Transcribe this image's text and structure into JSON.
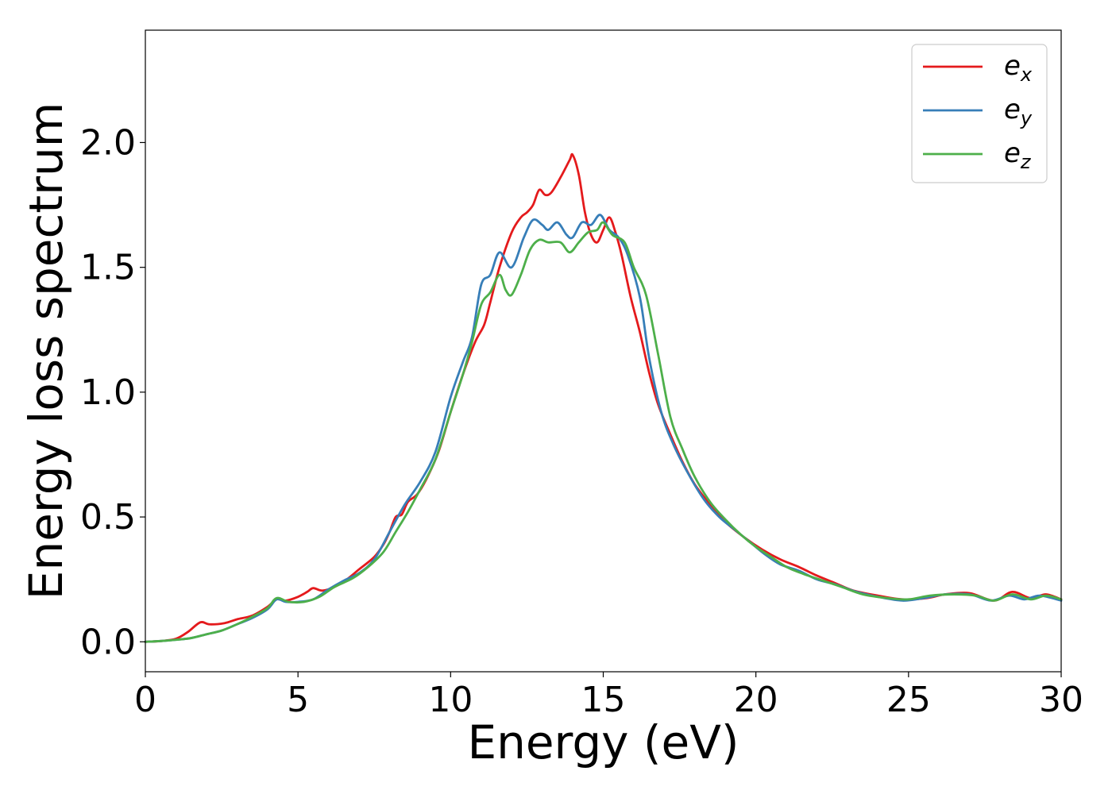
{
  "chart_data": {
    "type": "line",
    "title": "",
    "xlabel": "Energy (eV)",
    "ylabel": "Energy loss spectrum",
    "xlim": [
      0,
      30
    ],
    "ylim": [
      -0.12,
      2.45
    ],
    "xticks": [
      0,
      5,
      10,
      15,
      20,
      25,
      30
    ],
    "xtick_labels": [
      "0",
      "5",
      "10",
      "15",
      "20",
      "25",
      "30"
    ],
    "yticks": [
      0.0,
      0.5,
      1.0,
      1.5,
      2.0
    ],
    "ytick_labels": [
      "0.0",
      "0.5",
      "1.0",
      "1.5",
      "2.0"
    ],
    "grid": false,
    "legend": {
      "position": "top-right"
    },
    "series": [
      {
        "name": "e_x",
        "label_main": "e",
        "label_sub": "x",
        "color": "#e41a1c",
        "points": [
          [
            0,
            0
          ],
          [
            0.5,
            0.003
          ],
          [
            1.0,
            0.012
          ],
          [
            1.4,
            0.04
          ],
          [
            1.8,
            0.078
          ],
          [
            2.1,
            0.07
          ],
          [
            2.6,
            0.075
          ],
          [
            3.0,
            0.09
          ],
          [
            3.5,
            0.105
          ],
          [
            4.0,
            0.14
          ],
          [
            4.3,
            0.17
          ],
          [
            4.6,
            0.165
          ],
          [
            5.0,
            0.18
          ],
          [
            5.3,
            0.2
          ],
          [
            5.5,
            0.215
          ],
          [
            5.8,
            0.205
          ],
          [
            6.2,
            0.22
          ],
          [
            6.6,
            0.25
          ],
          [
            7.0,
            0.29
          ],
          [
            7.5,
            0.34
          ],
          [
            7.8,
            0.39
          ],
          [
            8.0,
            0.44
          ],
          [
            8.2,
            0.5
          ],
          [
            8.4,
            0.51
          ],
          [
            8.6,
            0.56
          ],
          [
            8.9,
            0.59
          ],
          [
            9.2,
            0.65
          ],
          [
            9.6,
            0.76
          ],
          [
            10.0,
            0.92
          ],
          [
            10.4,
            1.07
          ],
          [
            10.8,
            1.2
          ],
          [
            11.1,
            1.27
          ],
          [
            11.3,
            1.36
          ],
          [
            11.6,
            1.5
          ],
          [
            12.0,
            1.64
          ],
          [
            12.3,
            1.7
          ],
          [
            12.5,
            1.72
          ],
          [
            12.7,
            1.75
          ],
          [
            12.9,
            1.81
          ],
          [
            13.1,
            1.79
          ],
          [
            13.3,
            1.8
          ],
          [
            13.6,
            1.86
          ],
          [
            13.9,
            1.93
          ],
          [
            14.0,
            1.95
          ],
          [
            14.2,
            1.87
          ],
          [
            14.4,
            1.72
          ],
          [
            14.6,
            1.63
          ],
          [
            14.8,
            1.6
          ],
          [
            15.0,
            1.65
          ],
          [
            15.2,
            1.7
          ],
          [
            15.4,
            1.64
          ],
          [
            15.6,
            1.55
          ],
          [
            15.9,
            1.38
          ],
          [
            16.2,
            1.24
          ],
          [
            16.5,
            1.08
          ],
          [
            16.8,
            0.95
          ],
          [
            17.2,
            0.83
          ],
          [
            17.6,
            0.72
          ],
          [
            18.0,
            0.63
          ],
          [
            18.5,
            0.55
          ],
          [
            19.0,
            0.48
          ],
          [
            19.6,
            0.42
          ],
          [
            20.2,
            0.37
          ],
          [
            20.8,
            0.33
          ],
          [
            21.4,
            0.3
          ],
          [
            22.0,
            0.265
          ],
          [
            22.6,
            0.235
          ],
          [
            23.2,
            0.205
          ],
          [
            24.0,
            0.185
          ],
          [
            24.8,
            0.17
          ],
          [
            25.6,
            0.175
          ],
          [
            26.2,
            0.19
          ],
          [
            27.0,
            0.195
          ],
          [
            27.8,
            0.165
          ],
          [
            28.4,
            0.2
          ],
          [
            29.0,
            0.175
          ],
          [
            29.5,
            0.19
          ],
          [
            30.0,
            0.17
          ]
        ]
      },
      {
        "name": "e_y",
        "label_main": "e",
        "label_sub": "y",
        "color": "#377eb8",
        "points": [
          [
            0,
            0
          ],
          [
            0.5,
            0.003
          ],
          [
            1.0,
            0.008
          ],
          [
            1.5,
            0.015
          ],
          [
            2.0,
            0.03
          ],
          [
            2.5,
            0.045
          ],
          [
            3.0,
            0.07
          ],
          [
            3.5,
            0.095
          ],
          [
            4.0,
            0.13
          ],
          [
            4.3,
            0.17
          ],
          [
            4.6,
            0.16
          ],
          [
            5.0,
            0.16
          ],
          [
            5.5,
            0.17
          ],
          [
            6.0,
            0.21
          ],
          [
            6.5,
            0.245
          ],
          [
            7.0,
            0.275
          ],
          [
            7.5,
            0.33
          ],
          [
            8.0,
            0.44
          ],
          [
            8.5,
            0.55
          ],
          [
            9.0,
            0.64
          ],
          [
            9.5,
            0.76
          ],
          [
            10.0,
            0.98
          ],
          [
            10.4,
            1.12
          ],
          [
            10.7,
            1.22
          ],
          [
            11.0,
            1.43
          ],
          [
            11.3,
            1.47
          ],
          [
            11.6,
            1.56
          ],
          [
            12.0,
            1.5
          ],
          [
            12.4,
            1.62
          ],
          [
            12.7,
            1.69
          ],
          [
            13.0,
            1.67
          ],
          [
            13.2,
            1.65
          ],
          [
            13.5,
            1.68
          ],
          [
            13.8,
            1.63
          ],
          [
            14.0,
            1.62
          ],
          [
            14.3,
            1.68
          ],
          [
            14.6,
            1.67
          ],
          [
            14.9,
            1.71
          ],
          [
            15.2,
            1.65
          ],
          [
            15.5,
            1.62
          ],
          [
            15.8,
            1.55
          ],
          [
            16.2,
            1.38
          ],
          [
            16.5,
            1.14
          ],
          [
            16.9,
            0.92
          ],
          [
            17.3,
            0.79
          ],
          [
            17.8,
            0.67
          ],
          [
            18.3,
            0.57
          ],
          [
            18.8,
            0.5
          ],
          [
            19.3,
            0.45
          ],
          [
            19.8,
            0.4
          ],
          [
            20.3,
            0.35
          ],
          [
            20.8,
            0.31
          ],
          [
            21.4,
            0.285
          ],
          [
            22.0,
            0.25
          ],
          [
            22.6,
            0.23
          ],
          [
            23.3,
            0.2
          ],
          [
            24.0,
            0.18
          ],
          [
            24.8,
            0.165
          ],
          [
            25.5,
            0.175
          ],
          [
            26.2,
            0.19
          ],
          [
            27.0,
            0.19
          ],
          [
            27.7,
            0.165
          ],
          [
            28.3,
            0.185
          ],
          [
            28.8,
            0.17
          ],
          [
            29.3,
            0.185
          ],
          [
            30.0,
            0.165
          ]
        ]
      },
      {
        "name": "e_z",
        "label_main": "e",
        "label_sub": "z",
        "color": "#4daf4a",
        "points": [
          [
            0,
            0
          ],
          [
            0.5,
            0.003
          ],
          [
            1.0,
            0.008
          ],
          [
            1.5,
            0.015
          ],
          [
            2.0,
            0.03
          ],
          [
            2.5,
            0.045
          ],
          [
            3.0,
            0.07
          ],
          [
            3.5,
            0.1
          ],
          [
            4.0,
            0.135
          ],
          [
            4.3,
            0.175
          ],
          [
            4.7,
            0.16
          ],
          [
            5.2,
            0.16
          ],
          [
            5.7,
            0.18
          ],
          [
            6.2,
            0.22
          ],
          [
            6.8,
            0.255
          ],
          [
            7.3,
            0.3
          ],
          [
            7.8,
            0.36
          ],
          [
            8.2,
            0.44
          ],
          [
            8.6,
            0.52
          ],
          [
            9.0,
            0.61
          ],
          [
            9.5,
            0.73
          ],
          [
            10.0,
            0.92
          ],
          [
            10.4,
            1.07
          ],
          [
            10.7,
            1.2
          ],
          [
            11.0,
            1.35
          ],
          [
            11.3,
            1.4
          ],
          [
            11.6,
            1.47
          ],
          [
            11.8,
            1.41
          ],
          [
            12.0,
            1.39
          ],
          [
            12.3,
            1.47
          ],
          [
            12.6,
            1.57
          ],
          [
            12.9,
            1.61
          ],
          [
            13.2,
            1.6
          ],
          [
            13.6,
            1.6
          ],
          [
            13.9,
            1.56
          ],
          [
            14.2,
            1.6
          ],
          [
            14.5,
            1.64
          ],
          [
            14.8,
            1.65
          ],
          [
            15.0,
            1.68
          ],
          [
            15.3,
            1.63
          ],
          [
            15.7,
            1.6
          ],
          [
            16.0,
            1.5
          ],
          [
            16.4,
            1.39
          ],
          [
            16.8,
            1.15
          ],
          [
            17.2,
            0.9
          ],
          [
            17.6,
            0.77
          ],
          [
            18.0,
            0.66
          ],
          [
            18.5,
            0.56
          ],
          [
            19.0,
            0.49
          ],
          [
            19.5,
            0.43
          ],
          [
            20.0,
            0.38
          ],
          [
            20.5,
            0.34
          ],
          [
            21.0,
            0.3
          ],
          [
            21.6,
            0.27
          ],
          [
            22.2,
            0.245
          ],
          [
            22.8,
            0.22
          ],
          [
            23.5,
            0.19
          ],
          [
            24.3,
            0.175
          ],
          [
            25.0,
            0.17
          ],
          [
            25.7,
            0.185
          ],
          [
            26.5,
            0.19
          ],
          [
            27.2,
            0.185
          ],
          [
            27.8,
            0.165
          ],
          [
            28.4,
            0.19
          ],
          [
            29.0,
            0.17
          ],
          [
            29.5,
            0.185
          ],
          [
            30.0,
            0.17
          ]
        ]
      }
    ]
  }
}
